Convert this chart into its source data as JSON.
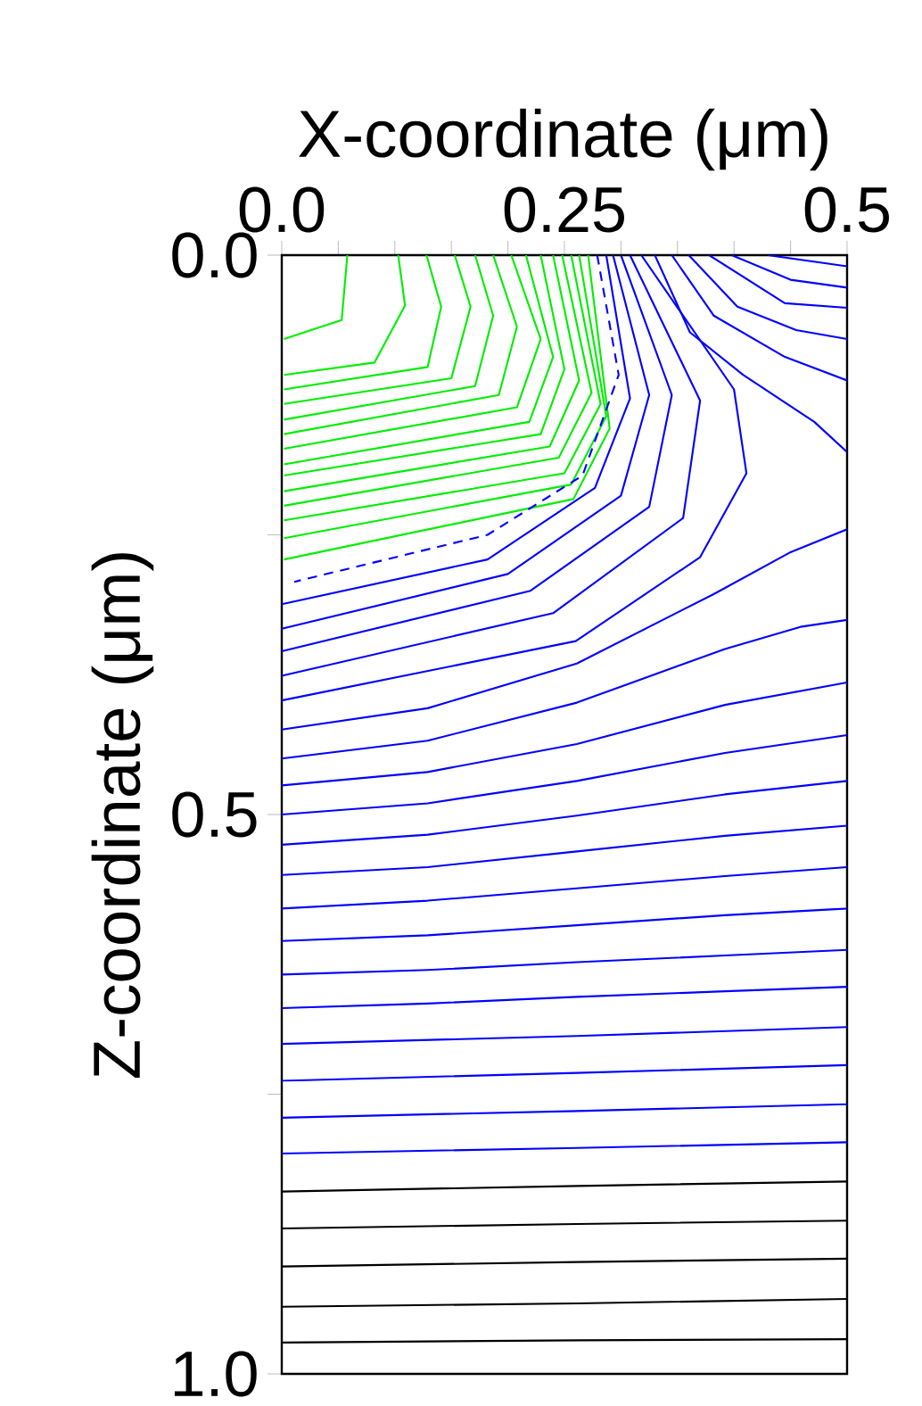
{
  "chart_data": {
    "type": "line",
    "xlabel": "X-coordinate (μm)",
    "ylabel": "Z-coordinate (μm)",
    "xlim": [
      0,
      0.5
    ],
    "ylim": [
      1.0,
      0.0
    ],
    "xticks": [
      {
        "value": 0,
        "label": "0.0"
      },
      {
        "value": 0.05,
        "label": null
      },
      {
        "value": 0.1,
        "label": null
      },
      {
        "value": 0.15,
        "label": null
      },
      {
        "value": 0.2,
        "label": null
      },
      0.25,
      {
        "value": 0.3,
        "label": null
      },
      {
        "value": 0.35,
        "label": null
      },
      {
        "value": 0.4,
        "label": null
      },
      {
        "value": 0.45,
        "label": null
      },
      0.5
    ],
    "yticks": [
      {
        "value": 0,
        "label": "0.0"
      },
      {
        "value": 0.25,
        "label": null
      },
      0.5,
      {
        "value": 0.75,
        "label": null
      },
      {
        "value": 1,
        "label": "1.0"
      }
    ],
    "tick_labels": "xy",
    "series": [
      {
        "color": "#00ee00",
        "x": [
          0.002,
          0.053,
          0.058
        ],
        "values": [
          0.075,
          0.058,
          0
        ]
      },
      {
        "color": "#00ee00",
        "x": [
          0.002,
          0.082,
          0.109,
          0.103
        ],
        "values": [
          0.107,
          0.096,
          0.045,
          0
        ]
      },
      {
        "color": "#00ee00",
        "x": [
          0.002,
          0.129,
          0.141,
          0.128
        ],
        "values": [
          0.12,
          0.1,
          0.046,
          0
        ]
      },
      {
        "color": "#00ee00",
        "x": [
          0.002,
          0.15,
          0.167,
          0.153
        ],
        "values": [
          0.133,
          0.11,
          0.046,
          0
        ]
      },
      {
        "color": "#00ee00",
        "x": [
          0.002,
          0.171,
          0.187,
          0.171
        ],
        "values": [
          0.147,
          0.117,
          0.054,
          0
        ]
      },
      {
        "color": "#00ee00",
        "x": [
          0.002,
          0.192,
          0.208,
          0.187
        ],
        "values": [
          0.16,
          0.125,
          0.064,
          0
        ]
      },
      {
        "color": "#00ee00",
        "x": [
          0.002,
          0.208,
          0.229,
          0.203
        ],
        "values": [
          0.173,
          0.136,
          0.075,
          0
        ]
      },
      {
        "color": "#00ee00",
        "x": [
          0.002,
          0.219,
          0.24,
          0.216
        ],
        "values": [
          0.187,
          0.149,
          0.091,
          0
        ]
      },
      {
        "color": "#00ee00",
        "x": [
          0.002,
          0.229,
          0.25,
          0.229
        ],
        "values": [
          0.197,
          0.16,
          0.102,
          0
        ]
      },
      {
        "color": "#00ee00",
        "x": [
          0.002,
          0.237,
          0.263,
          0.24
        ],
        "values": [
          0.211,
          0.171,
          0.112,
          0
        ]
      },
      {
        "color": "#00ee00",
        "x": [
          0.002,
          0.245,
          0.274,
          0.248
        ],
        "values": [
          0.224,
          0.181,
          0.123,
          0
        ]
      },
      {
        "color": "#00ee00",
        "x": [
          0.002,
          0.25,
          0.282,
          0.256
        ],
        "values": [
          0.237,
          0.195,
          0.133,
          0
        ]
      },
      {
        "color": "#00ee00",
        "x": [
          0.002,
          0.256,
          0.287,
          0.263
        ],
        "values": [
          0.253,
          0.205,
          0.144,
          0
        ]
      },
      {
        "color": "#00ee00",
        "x": [
          0.002,
          0.258,
          0.29,
          0.271
        ],
        "values": [
          0.272,
          0.218,
          0.155,
          0
        ]
      },
      {
        "color": "#0000ff",
        "line_style": "dashed",
        "x": [
          0.279,
          0.298,
          0.266,
          0.182,
          0.011
        ],
        "values": [
          0,
          0.107,
          0.197,
          0.25,
          0.292
        ]
      },
      {
        "color": "#0000ff",
        "x": [
          0.287,
          0.308,
          0.277,
          0.182,
          0
        ],
        "values": [
          0,
          0.128,
          0.208,
          0.272,
          0.312
        ]
      },
      {
        "color": "#0000ff",
        "x": [
          0.293,
          0.325,
          0.3,
          0.2,
          0
        ],
        "values": [
          0,
          0.125,
          0.215,
          0.285,
          0.334
        ]
      },
      {
        "color": "#0000ff",
        "x": [
          0.3,
          0.345,
          0.325,
          0.22,
          0
        ],
        "values": [
          0,
          0.125,
          0.225,
          0.3,
          0.354
        ]
      },
      {
        "color": "#0000ff",
        "x": [
          0.308,
          0.37,
          0.355,
          0.24,
          0
        ],
        "values": [
          0,
          0.13,
          0.235,
          0.32,
          0.376
        ]
      },
      {
        "color": "#0000ff",
        "x": [
          0.318,
          0.4,
          0.411,
          0.37,
          0.26,
          0
        ],
        "values": [
          0,
          0.12,
          0.195,
          0.27,
          0.345,
          0.398
        ]
      },
      {
        "color": "#0000ff",
        "x": [
          0.33,
          0.361,
          0.408,
          0.471,
          0.5
        ],
        "values": [
          0,
          0.069,
          0.107,
          0.149,
          0.176
        ]
      },
      {
        "color": "#0000ff",
        "x": [
          0.345,
          0.382,
          0.445,
          0.5
        ],
        "values": [
          0,
          0.054,
          0.091,
          0.112
        ]
      },
      {
        "color": "#0000ff",
        "x": [
          0.36,
          0.403,
          0.455,
          0.5
        ],
        "values": [
          0,
          0.046,
          0.067,
          0.075
        ]
      },
      {
        "color": "#0000ff",
        "x": [
          0.378,
          0.445,
          0.5
        ],
        "values": [
          0,
          0.043,
          0.047
        ]
      },
      {
        "color": "#0000ff",
        "x": [
          0.398,
          0.45,
          0.5
        ],
        "values": [
          0,
          0.022,
          0.029
        ]
      },
      {
        "color": "#0000ff",
        "x": [
          0.43,
          0.5
        ],
        "values": [
          0,
          0.01
        ]
      },
      {
        "color": "#0000ff",
        "x": [
          0,
          0.129,
          0.261,
          0.382,
          0.449,
          0.5
        ],
        "values": [
          0.424,
          0.405,
          0.365,
          0.303,
          0.266,
          0.245
        ]
      },
      {
        "color": "#0000ff",
        "x": [
          0,
          0.129,
          0.261,
          0.392,
          0.46,
          0.5
        ],
        "values": [
          0.45,
          0.434,
          0.4,
          0.352,
          0.332,
          0.326
        ]
      },
      {
        "color": "#0000ff",
        "x": [
          0,
          0.129,
          0.261,
          0.392,
          0.5
        ],
        "values": [
          0.474,
          0.462,
          0.437,
          0.402,
          0.382
        ]
      },
      {
        "color": "#0000ff",
        "x": [
          0,
          0.129,
          0.261,
          0.392,
          0.5
        ],
        "values": [
          0.5,
          0.49,
          0.47,
          0.445,
          0.429
        ]
      },
      {
        "color": "#0000ff",
        "x": [
          0,
          0.129,
          0.261,
          0.392,
          0.5
        ],
        "values": [
          0.527,
          0.518,
          0.501,
          0.482,
          0.47
        ]
      },
      {
        "color": "#0000ff",
        "x": [
          0,
          0.129,
          0.261,
          0.392,
          0.5
        ],
        "values": [
          0.554,
          0.547,
          0.533,
          0.519,
          0.51
        ]
      },
      {
        "color": "#0000ff",
        "x": [
          0,
          0.129,
          0.261,
          0.392,
          0.5
        ],
        "values": [
          0.584,
          0.577,
          0.566,
          0.555,
          0.547
        ]
      },
      {
        "color": "#0000ff",
        "x": [
          0,
          0.129,
          0.261,
          0.392,
          0.5
        ],
        "values": [
          0.613,
          0.608,
          0.599,
          0.59,
          0.584
        ]
      },
      {
        "color": "#0000ff",
        "x": [
          0,
          0.129,
          0.261,
          0.392,
          0.5
        ],
        "values": [
          0.643,
          0.639,
          0.632,
          0.626,
          0.621
        ]
      },
      {
        "color": "#0000ff",
        "x": [
          0,
          0.129,
          0.261,
          0.392,
          0.5
        ],
        "values": [
          0.673,
          0.669,
          0.663,
          0.658,
          0.654
        ]
      },
      {
        "color": "#0000ff",
        "x": [
          0,
          0.261,
          0.5
        ],
        "values": [
          0.705,
          0.698,
          0.69
        ]
      },
      {
        "color": "#0000ff",
        "x": [
          0,
          0.261,
          0.5
        ],
        "values": [
          0.738,
          0.731,
          0.724
        ]
      },
      {
        "color": "#0000ff",
        "x": [
          0,
          0.261,
          0.5
        ],
        "values": [
          0.771,
          0.765,
          0.759
        ]
      },
      {
        "color": "#0000ff",
        "x": [
          0,
          0.261,
          0.5
        ],
        "values": [
          0.803,
          0.798,
          0.793
        ]
      },
      {
        "color": "#000000",
        "x": [
          0,
          0.261,
          0.5
        ],
        "values": [
          0.837,
          0.832,
          0.828
        ]
      },
      {
        "color": "#000000",
        "x": [
          0,
          0.261,
          0.5
        ],
        "values": [
          0.87,
          0.866,
          0.863
        ]
      },
      {
        "color": "#000000",
        "x": [
          0,
          0.261,
          0.5
        ],
        "values": [
          0.904,
          0.9,
          0.897
        ]
      },
      {
        "color": "#000000",
        "x": [
          0,
          0.261,
          0.5
        ],
        "values": [
          0.94,
          0.937,
          0.933
        ]
      },
      {
        "color": "#000000",
        "x": [
          0,
          0.261,
          0.5
        ],
        "values": [
          0.972,
          0.97,
          0.969
        ]
      }
    ]
  }
}
